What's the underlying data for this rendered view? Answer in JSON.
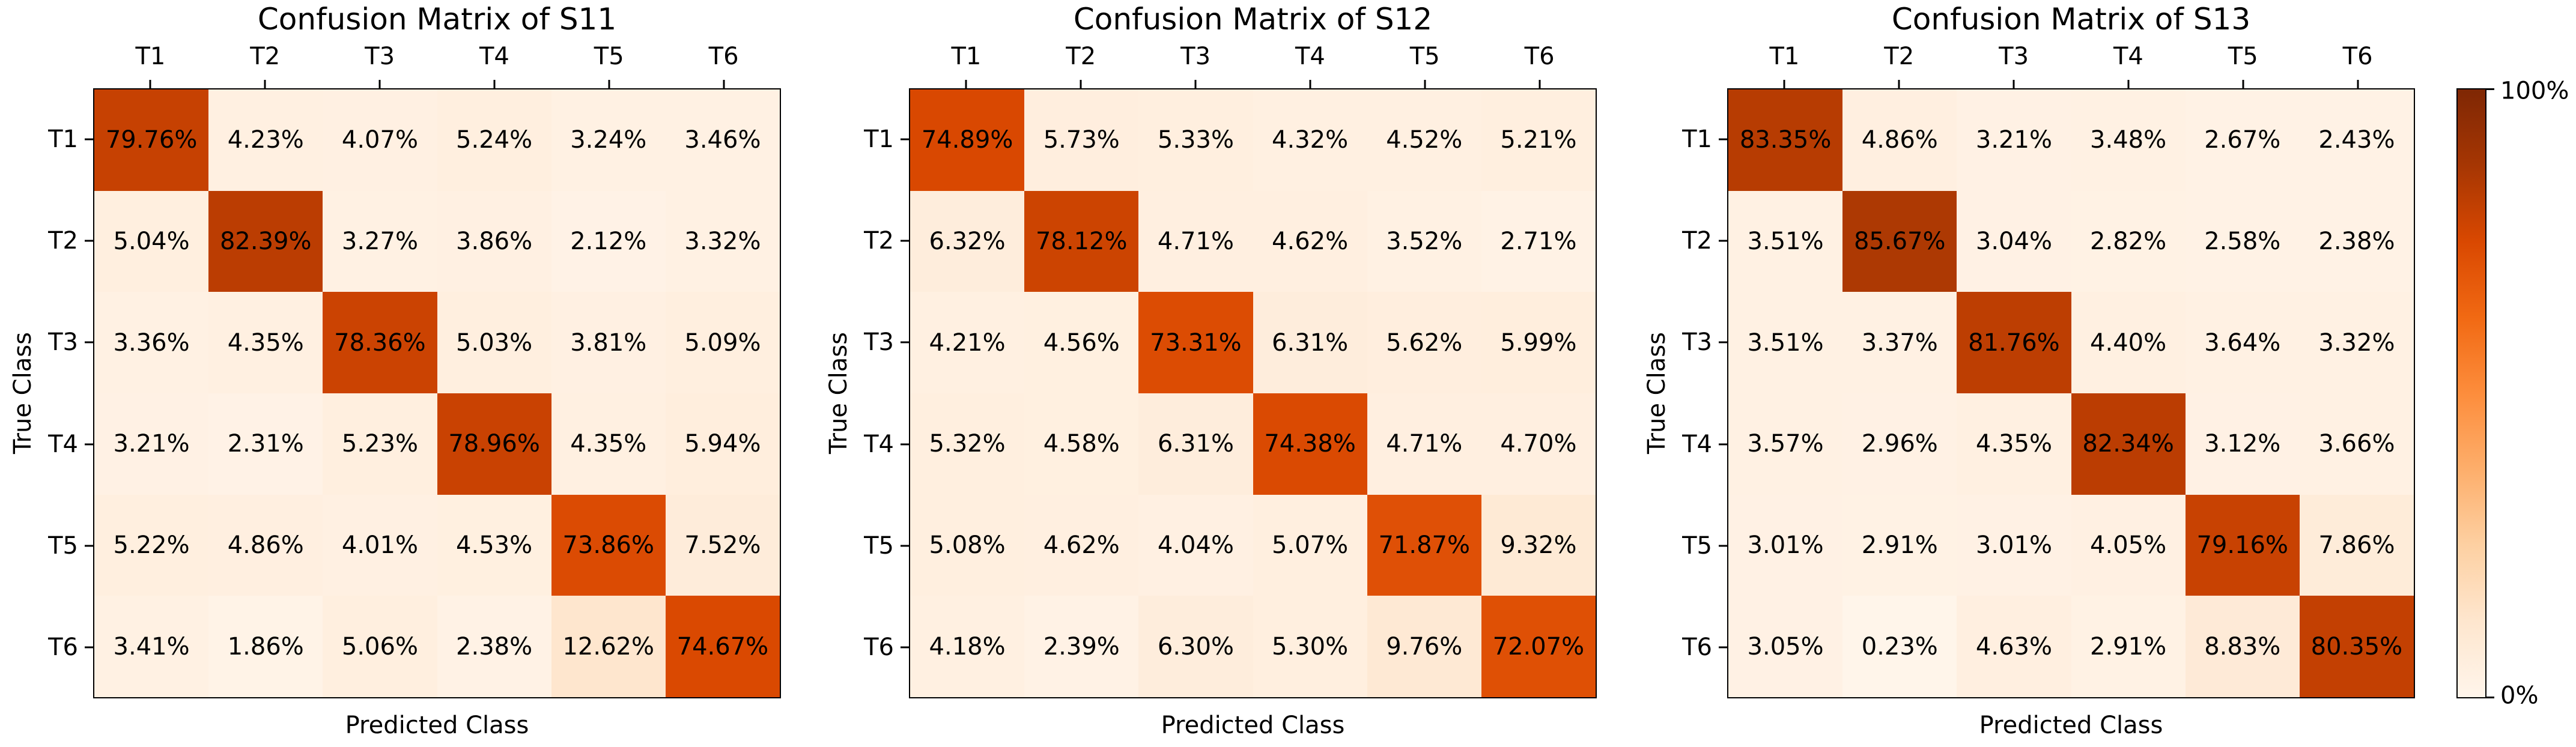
{
  "figure": {
    "background": "#ffffff",
    "frame_color": "#000000",
    "text_color": "#000000"
  },
  "colorbar": {
    "top_label": "100%",
    "bottom_label": "0%",
    "colormap": "Oranges",
    "colormap_stops": [
      "#fff5eb",
      "#fee6ce",
      "#fdd0a2",
      "#fdae6b",
      "#fd8d3c",
      "#f16913",
      "#d94801",
      "#a63603",
      "#7f2704"
    ]
  },
  "chart_data": [
    {
      "type": "heatmap",
      "title": "Confusion Matrix of S11",
      "xlabel": "Predicted Class",
      "ylabel": "True Class",
      "x_tick_labels": [
        "T1",
        "T2",
        "T3",
        "T4",
        "T5",
        "T6"
      ],
      "y_tick_labels": [
        "T1",
        "T2",
        "T3",
        "T4",
        "T5",
        "T6"
      ],
      "vmin": 0,
      "vmax": 100,
      "value_format": "percent_2dp",
      "values_percent": [
        [
          79.76,
          4.23,
          4.07,
          5.24,
          3.24,
          3.46
        ],
        [
          5.04,
          82.39,
          3.27,
          3.86,
          2.12,
          3.32
        ],
        [
          3.36,
          4.35,
          78.36,
          5.03,
          3.81,
          5.09
        ],
        [
          3.21,
          2.31,
          5.23,
          78.96,
          4.35,
          5.94
        ],
        [
          5.22,
          4.86,
          4.01,
          4.53,
          73.86,
          7.52
        ],
        [
          3.41,
          1.86,
          5.06,
          2.38,
          12.62,
          74.67
        ]
      ]
    },
    {
      "type": "heatmap",
      "title": "Confusion Matrix of S12",
      "xlabel": "Predicted Class",
      "ylabel": "True Class",
      "x_tick_labels": [
        "T1",
        "T2",
        "T3",
        "T4",
        "T5",
        "T6"
      ],
      "y_tick_labels": [
        "T1",
        "T2",
        "T3",
        "T4",
        "T5",
        "T6"
      ],
      "vmin": 0,
      "vmax": 100,
      "value_format": "percent_2dp",
      "values_percent": [
        [
          74.89,
          5.73,
          5.33,
          4.32,
          4.52,
          5.21
        ],
        [
          6.32,
          78.12,
          4.71,
          4.62,
          3.52,
          2.71
        ],
        [
          4.21,
          4.56,
          73.31,
          6.31,
          5.62,
          5.99
        ],
        [
          5.32,
          4.58,
          6.31,
          74.38,
          4.71,
          4.7
        ],
        [
          5.08,
          4.62,
          4.04,
          5.07,
          71.87,
          9.32
        ],
        [
          4.18,
          2.39,
          6.3,
          5.3,
          9.76,
          72.07
        ]
      ]
    },
    {
      "type": "heatmap",
      "title": "Confusion Matrix of S13",
      "xlabel": "Predicted Class",
      "ylabel": "True Class",
      "x_tick_labels": [
        "T1",
        "T2",
        "T3",
        "T4",
        "T5",
        "T6"
      ],
      "y_tick_labels": [
        "T1",
        "T2",
        "T3",
        "T4",
        "T5",
        "T6"
      ],
      "vmin": 0,
      "vmax": 100,
      "value_format": "percent_2dp",
      "values_percent": [
        [
          83.35,
          4.86,
          3.21,
          3.48,
          2.67,
          2.43
        ],
        [
          3.51,
          85.67,
          3.04,
          2.82,
          2.58,
          2.38
        ],
        [
          3.51,
          3.37,
          81.76,
          4.4,
          3.64,
          3.32
        ],
        [
          3.57,
          2.96,
          4.35,
          82.34,
          3.12,
          3.66
        ],
        [
          3.01,
          2.91,
          3.01,
          4.05,
          79.16,
          7.86
        ],
        [
          3.05,
          0.23,
          4.63,
          2.91,
          8.83,
          80.35
        ]
      ]
    }
  ]
}
